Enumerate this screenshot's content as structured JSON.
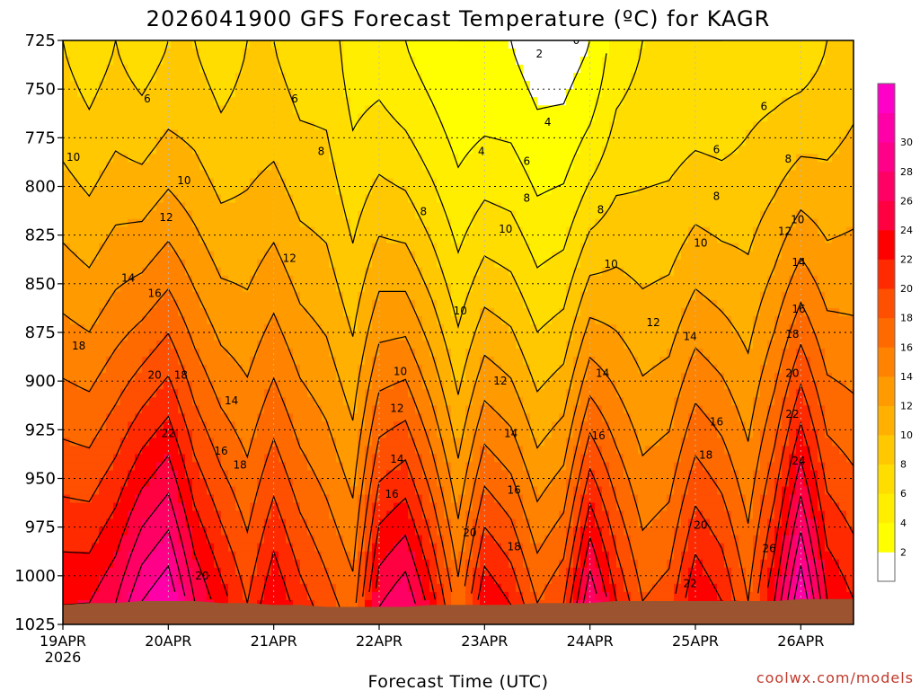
{
  "chart_data": {
    "type": "heatmap",
    "subtype": "time-height contour (filled)",
    "title": "2026041900 GFS Forecast Temperature (ºC) for KAGR",
    "xlabel": "Forecast Time (UTC)",
    "ylabel": "",
    "credit": "coolwx.com/models",
    "y_axis": {
      "unit": "hPa",
      "reversed": true,
      "range": [
        1025,
        725
      ],
      "ticks": [
        "725",
        "750",
        "775",
        "800",
        "825",
        "850",
        "875",
        "900",
        "925",
        "950",
        "975",
        "1000",
        "1025"
      ]
    },
    "x_axis": {
      "range_days": [
        0,
        7.5
      ],
      "ticks": [
        {
          "day": 0,
          "label": "19APR",
          "sublabel": "2026"
        },
        {
          "day": 1,
          "label": "20APR",
          "sublabel": ""
        },
        {
          "day": 2,
          "label": "21APR",
          "sublabel": ""
        },
        {
          "day": 3,
          "label": "22APR",
          "sublabel": ""
        },
        {
          "day": 4,
          "label": "23APR",
          "sublabel": ""
        },
        {
          "day": 5,
          "label": "24APR",
          "sublabel": ""
        },
        {
          "day": 6,
          "label": "25APR",
          "sublabel": ""
        },
        {
          "day": 7,
          "label": "26APR",
          "sublabel": ""
        }
      ]
    },
    "grid": true,
    "contour_interval": 2,
    "colorbar": {
      "placement": "right",
      "min": 0,
      "max": 34,
      "ticks": [
        "2",
        "4",
        "6",
        "8",
        "10",
        "12",
        "14",
        "16",
        "18",
        "20",
        "22",
        "24",
        "26",
        "28",
        "30"
      ],
      "colors": [
        "#ffffff",
        "#ffff00",
        "#ffee00",
        "#ffdd00",
        "#ffc800",
        "#ffb000",
        "#ff9a00",
        "#ff8200",
        "#ff6a00",
        "#ff4f00",
        "#ff2a00",
        "#ff0000",
        "#ff0040",
        "#ff0064",
        "#ff0088",
        "#ff00a8",
        "#ff00c8"
      ]
    },
    "sample_times_days": [
      0,
      0.25,
      0.5,
      0.75,
      1,
      1.25,
      1.5,
      1.75,
      2,
      2.25,
      2.5,
      2.75,
      3,
      3.25,
      3.5,
      3.75,
      4,
      4.25,
      4.5,
      4.75,
      5,
      5.25,
      5.5,
      5.75,
      6,
      6.25,
      6.5,
      6.75,
      7,
      7.25,
      7.5
    ],
    "temp_at_725": [
      8,
      7,
      8,
      7,
      8,
      8,
      7,
      8,
      8,
      7,
      7,
      5,
      5,
      4,
      3,
      2,
      2,
      2,
      1,
      1,
      2,
      5,
      6,
      6,
      6,
      6,
      7,
      7,
      7,
      8,
      9
    ],
    "temp_at_surface": [
      24,
      24,
      26,
      30,
      32,
      26,
      23,
      20,
      24,
      21,
      19,
      17,
      26,
      28,
      23,
      17,
      24,
      22,
      18,
      20,
      28,
      22,
      18,
      19,
      24,
      22,
      18,
      24,
      32,
      24,
      22
    ],
    "surface_pressure_hPa": [
      1015,
      1014,
      1014,
      1013,
      1013,
      1013,
      1014,
      1014,
      1015,
      1015,
      1016,
      1016,
      1016,
      1016,
      1015,
      1015,
      1015,
      1015,
      1014,
      1014,
      1014,
      1013,
      1013,
      1013,
      1013,
      1013,
      1013,
      1013,
      1012,
      1012,
      1012
    ],
    "contour_labels": [
      {
        "day": 0.1,
        "pressure": 785,
        "text": "10"
      },
      {
        "day": 0.8,
        "pressure": 755,
        "text": "6"
      },
      {
        "day": 1.15,
        "pressure": 797,
        "text": "10"
      },
      {
        "day": 0.98,
        "pressure": 816,
        "text": "12"
      },
      {
        "day": 0.62,
        "pressure": 847,
        "text": "14"
      },
      {
        "day": 0.87,
        "pressure": 855,
        "text": "16"
      },
      {
        "day": 0.15,
        "pressure": 882,
        "text": "18"
      },
      {
        "day": 0.87,
        "pressure": 897,
        "text": "20"
      },
      {
        "day": 1.12,
        "pressure": 897,
        "text": "18"
      },
      {
        "day": 1.0,
        "pressure": 927,
        "text": "22"
      },
      {
        "day": 1.6,
        "pressure": 910,
        "text": "14"
      },
      {
        "day": 1.5,
        "pressure": 936,
        "text": "16"
      },
      {
        "day": 1.68,
        "pressure": 943,
        "text": "18"
      },
      {
        "day": 1.32,
        "pressure": 1000,
        "text": "20"
      },
      {
        "day": 2.2,
        "pressure": 755,
        "text": "6"
      },
      {
        "day": 2.45,
        "pressure": 782,
        "text": "8"
      },
      {
        "day": 2.15,
        "pressure": 837,
        "text": "12"
      },
      {
        "day": 3.42,
        "pressure": 813,
        "text": "8"
      },
      {
        "day": 3.2,
        "pressure": 895,
        "text": "10"
      },
      {
        "day": 3.17,
        "pressure": 914,
        "text": "12"
      },
      {
        "day": 3.17,
        "pressure": 940,
        "text": "14"
      },
      {
        "day": 3.12,
        "pressure": 958,
        "text": "16"
      },
      {
        "day": 3.77,
        "pressure": 864,
        "text": "10"
      },
      {
        "day": 3.86,
        "pressure": 978,
        "text": "20"
      },
      {
        "day": 4.15,
        "pressure": 900,
        "text": "12"
      },
      {
        "day": 4.25,
        "pressure": 927,
        "text": "14"
      },
      {
        "day": 4.28,
        "pressure": 956,
        "text": "16"
      },
      {
        "day": 4.28,
        "pressure": 985,
        "text": "18"
      },
      {
        "day": 3.97,
        "pressure": 782,
        "text": "4"
      },
      {
        "day": 4.52,
        "pressure": 732,
        "text": "2"
      },
      {
        "day": 4.6,
        "pressure": 767,
        "text": "4"
      },
      {
        "day": 4.4,
        "pressure": 787,
        "text": "6"
      },
      {
        "day": 4.4,
        "pressure": 806,
        "text": "8"
      },
      {
        "day": 4.2,
        "pressure": 822,
        "text": "10"
      },
      {
        "day": 5.1,
        "pressure": 812,
        "text": "8"
      },
      {
        "day": 5.2,
        "pressure": 840,
        "text": "10"
      },
      {
        "day": 5.12,
        "pressure": 896,
        "text": "14"
      },
      {
        "day": 5.08,
        "pressure": 928,
        "text": "16"
      },
      {
        "day": 5.6,
        "pressure": 870,
        "text": "12"
      },
      {
        "day": 5.95,
        "pressure": 877,
        "text": "14"
      },
      {
        "day": 6.05,
        "pressure": 829,
        "text": "10"
      },
      {
        "day": 5.95,
        "pressure": 1004,
        "text": "22"
      },
      {
        "day": 6.2,
        "pressure": 921,
        "text": "16"
      },
      {
        "day": 6.1,
        "pressure": 938,
        "text": "18"
      },
      {
        "day": 6.05,
        "pressure": 974,
        "text": "20"
      },
      {
        "day": 6.2,
        "pressure": 805,
        "text": "8"
      },
      {
        "day": 6.2,
        "pressure": 781,
        "text": "6"
      },
      {
        "day": 6.65,
        "pressure": 759,
        "text": "6"
      },
      {
        "day": 6.88,
        "pressure": 786,
        "text": "8"
      },
      {
        "day": 6.97,
        "pressure": 817,
        "text": "10"
      },
      {
        "day": 6.85,
        "pressure": 823,
        "text": "12"
      },
      {
        "day": 6.98,
        "pressure": 839,
        "text": "14"
      },
      {
        "day": 6.98,
        "pressure": 863,
        "text": "16"
      },
      {
        "day": 6.92,
        "pressure": 876,
        "text": "18"
      },
      {
        "day": 6.92,
        "pressure": 896,
        "text": "20"
      },
      {
        "day": 6.92,
        "pressure": 917,
        "text": "22"
      },
      {
        "day": 6.98,
        "pressure": 941,
        "text": "24"
      },
      {
        "day": 6.7,
        "pressure": 986,
        "text": "26"
      },
      {
        "day": 4.87,
        "pressure": 725,
        "text": "0"
      }
    ]
  }
}
